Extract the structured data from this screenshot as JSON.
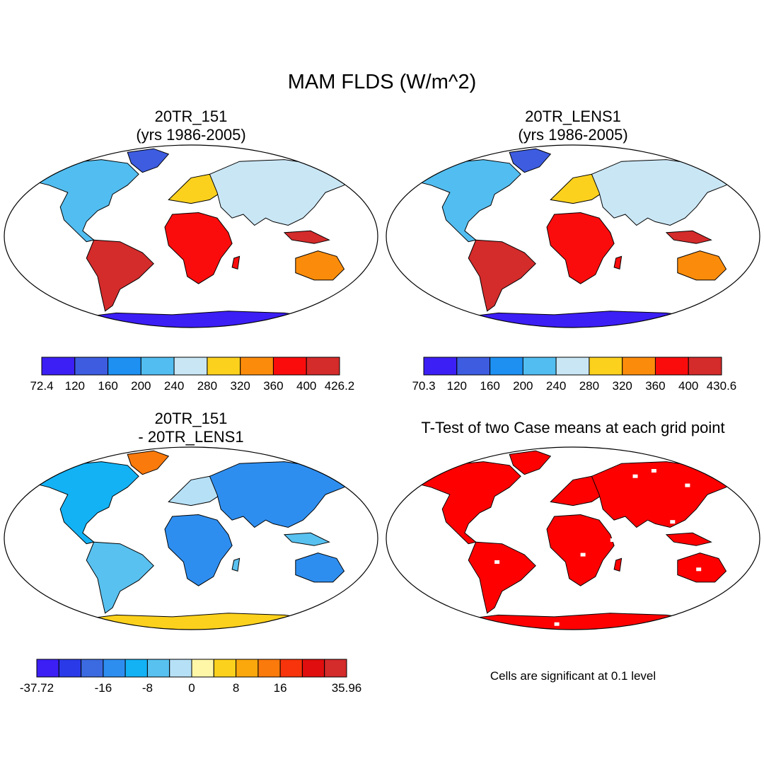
{
  "figure": {
    "title": "MAM FLDS (W/m^2)"
  },
  "panels": [
    {
      "title_line1": "20TR_151",
      "title_line2": "(yrs 1986-2005)",
      "colorbar": {
        "labels": [
          "72.4",
          "120",
          "160",
          "200",
          "240",
          "280",
          "320",
          "360",
          "400",
          "426.2"
        ],
        "colors": [
          "#3c1ff5",
          "#3d5ce0",
          "#1d90f2",
          "#52bdf0",
          "#c9e6f5",
          "#fcd11d",
          "#fb8c0b",
          "#fb0c0c",
          "#d42b2b"
        ]
      }
    },
    {
      "title_line1": "20TR_LENS1",
      "title_line2": "(yrs 1986-2005)",
      "colorbar": {
        "labels": [
          "70.3",
          "120",
          "160",
          "200",
          "240",
          "280",
          "320",
          "360",
          "400",
          "430.6"
        ],
        "colors": [
          "#3c1ff5",
          "#3d5ce0",
          "#1d90f2",
          "#52bdf0",
          "#c9e6f5",
          "#fcd11d",
          "#fb8c0b",
          "#fb0c0c",
          "#d42b2b"
        ]
      }
    },
    {
      "title_line1": "20TR_151",
      "title_line2": "- 20TR_LENS1",
      "colorbar": {
        "labels": [
          "-37.72",
          "-16",
          "-8",
          "0",
          "8",
          "16",
          "35.96"
        ],
        "colors": [
          "#3c1ff5",
          "#2a3ae8",
          "#3c6ae0",
          "#2e8ef0",
          "#13b2f5",
          "#58c1f0",
          "#b6e0f6",
          "#fff7a8",
          "#fcd11d",
          "#fba80d",
          "#fb7a0c",
          "#f7340b",
          "#e00e0e",
          "#d42b2b"
        ]
      }
    },
    {
      "title_line1": "T-Test of two Case means at each grid point",
      "footnote": "Cells are significant at 0.1 level",
      "significant_color": "#ff0000"
    }
  ]
}
